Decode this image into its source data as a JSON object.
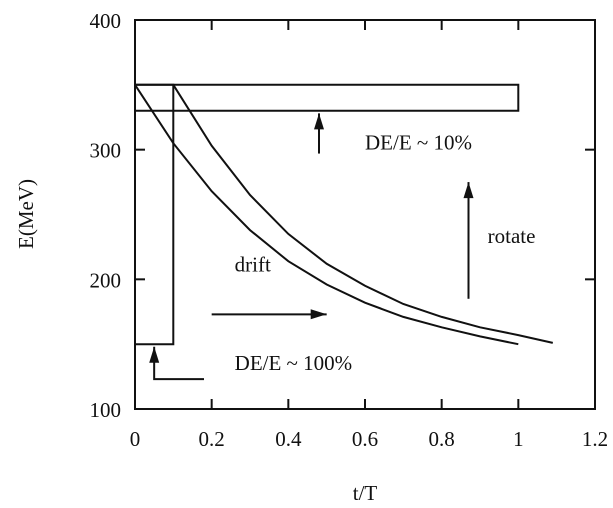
{
  "chart_data": {
    "type": "line",
    "title": "",
    "xlabel": "t/T",
    "ylabel": "E(MeV)",
    "xlim": [
      0,
      1.2
    ],
    "ylim": [
      100,
      400
    ],
    "x_ticks": [
      0,
      0.2,
      0.4,
      0.6,
      0.8,
      1,
      1.2
    ],
    "x_tick_labels": [
      "0",
      "0.2",
      "0.4",
      "0.6",
      "0.8",
      "1",
      "1.2"
    ],
    "y_ticks": [
      100,
      200,
      300,
      400
    ],
    "y_tick_labels": [
      "100",
      "200",
      "300",
      "400"
    ],
    "grid": false,
    "legend": "none",
    "series": [
      {
        "x": [
          0,
          0.1,
          0.2,
          0.3,
          0.4,
          0.5,
          0.6,
          0.7,
          0.8,
          0.9,
          1.0
        ],
        "y": [
          350,
          305,
          268,
          238,
          214,
          196,
          182,
          171,
          163,
          156,
          150
        ]
      },
      {
        "x": [
          0.1,
          0.2,
          0.3,
          0.4,
          0.5,
          0.6,
          0.7,
          0.8,
          0.9,
          1.0,
          1.09
        ],
        "y": [
          350,
          303,
          265,
          235,
          212,
          195,
          181,
          171,
          163,
          157,
          151
        ]
      },
      {
        "x": [
          0,
          0.1,
          0.1,
          0
        ],
        "y": [
          150,
          150,
          350,
          350
        ]
      },
      {
        "x": [
          0,
          1.0,
          1.0,
          0
        ],
        "y": [
          330,
          330,
          350,
          350
        ]
      }
    ],
    "annotations": [
      {
        "text": "DE/E ~ 10%",
        "x": 0.6,
        "y": 300
      },
      {
        "text": "rotate",
        "x": 0.92,
        "y": 228
      },
      {
        "text": "drift",
        "x": 0.26,
        "y": 206
      },
      {
        "text": "DE/E ~ 100%",
        "x": 0.26,
        "y": 130
      }
    ],
    "arrows": [
      {
        "from": [
          0.48,
          297
        ],
        "to": [
          0.48,
          328
        ]
      },
      {
        "from": [
          0.87,
          185
        ],
        "to": [
          0.87,
          275
        ]
      },
      {
        "from": [
          0.2,
          173
        ],
        "to": [
          0.5,
          173
        ]
      },
      {
        "from": [
          0.18,
          123
        ],
        "to": [
          0.05,
          123
        ],
        "bend_to": [
          0.05,
          148
        ]
      }
    ]
  }
}
